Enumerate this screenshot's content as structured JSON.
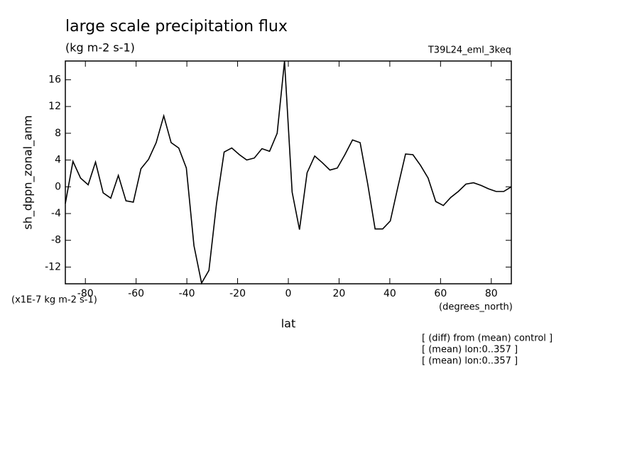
{
  "chart_data": {
    "type": "line",
    "title": "large scale precipitation flux",
    "subtitle": "(kg m-2 s-1)",
    "run_label": "T39L24_eml_3keq",
    "y_label": "sh_dppn_zonal_anm",
    "y_units": "(x1E-7 kg m-2 s-1)",
    "x_units": "(degrees_north)",
    "x_label": "lat",
    "notes": [
      "[ (diff) from (mean) control ]",
      "[ (mean) lon:0..357 ]",
      "[ (mean) lon:0..357 ]"
    ],
    "xlim": [
      -87.9,
      87.9
    ],
    "ylim": [
      -14.5,
      18.8
    ],
    "xticks": [
      -80,
      -60,
      -40,
      -20,
      0,
      20,
      40,
      60,
      80
    ],
    "yticks": [
      -12,
      -8,
      -4,
      0,
      4,
      8,
      12,
      16
    ],
    "x": [
      -87.9,
      -84.9,
      -81.9,
      -78.9,
      -76.0,
      -73.0,
      -70.0,
      -67.0,
      -64.0,
      -61.1,
      -58.1,
      -55.1,
      -52.1,
      -49.1,
      -46.2,
      -43.2,
      -40.2,
      -37.2,
      -34.2,
      -31.3,
      -28.3,
      -25.3,
      -22.3,
      -19.3,
      -16.4,
      -13.4,
      -10.4,
      -7.4,
      -4.4,
      -1.5,
      1.5,
      4.4,
      7.4,
      10.4,
      13.4,
      16.4,
      19.3,
      22.3,
      25.3,
      28.3,
      31.3,
      34.2,
      37.2,
      40.2,
      43.2,
      46.2,
      49.1,
      52.1,
      55.1,
      58.1,
      61.1,
      64.0,
      67.0,
      70.0,
      73.0,
      76.0,
      78.9,
      81.9,
      84.9,
      87.9
    ],
    "series": [
      {
        "color": "#000000",
        "values": [
          -2.5,
          3.8,
          1.3,
          0.3,
          3.7,
          -0.9,
          -1.7,
          1.7,
          -2.1,
          -2.3,
          2.7,
          4.1,
          6.6,
          10.6,
          6.6,
          5.8,
          2.8,
          -8.8,
          -14.4,
          -12.5,
          -2.5,
          5.2,
          5.8,
          4.8,
          4.0,
          4.3,
          5.7,
          5.3,
          8.0,
          18.8,
          -0.8,
          -6.4,
          2.1,
          4.6,
          3.6,
          2.5,
          2.8,
          4.8,
          7.0,
          6.6,
          0.4,
          -6.3,
          -6.3,
          -5.1,
          0,
          4.9,
          4.8,
          3.2,
          1.3,
          -2.2,
          -2.8,
          -1.6,
          -0.7,
          0.4,
          0.6,
          0.2,
          -0.3,
          -0.7,
          -0.7,
          0
        ]
      }
    ]
  }
}
